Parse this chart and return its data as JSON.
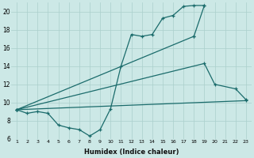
{
  "xlabel": "Humidex (Indice chaleur)",
  "background_color": "#cce8e6",
  "grid_color": "#aacfcc",
  "line_color": "#1a6b6b",
  "xlim": [
    0.5,
    23.5
  ],
  "ylim": [
    6,
    21
  ],
  "xticks": [
    1,
    2,
    3,
    4,
    5,
    6,
    7,
    8,
    9,
    10,
    11,
    12,
    13,
    14,
    15,
    16,
    17,
    18,
    19,
    20,
    21,
    22,
    23
  ],
  "yticks": [
    6,
    8,
    10,
    12,
    14,
    16,
    18,
    20
  ],
  "line1_x": [
    1,
    2,
    3,
    4,
    5,
    6,
    7,
    8,
    9,
    10,
    11,
    12,
    13,
    14,
    15,
    16,
    17,
    18,
    19
  ],
  "line1_y": [
    9.2,
    8.8,
    9.0,
    8.8,
    7.5,
    7.2,
    7.0,
    6.3,
    7.0,
    9.3,
    14.0,
    17.5,
    17.3,
    17.5,
    19.3,
    19.6,
    20.6,
    20.7,
    20.7
  ],
  "line2_x": [
    19,
    18
  ],
  "line2_y": [
    20.7,
    17.3
  ],
  "line3_x": [
    1,
    18
  ],
  "line3_y": [
    9.2,
    17.3
  ],
  "line4_x": [
    1,
    19,
    20,
    22,
    23
  ],
  "line4_y": [
    9.2,
    14.3,
    12.0,
    11.5,
    10.3
  ],
  "line5_x": [
    1,
    23
  ],
  "line5_y": [
    9.2,
    10.2
  ]
}
